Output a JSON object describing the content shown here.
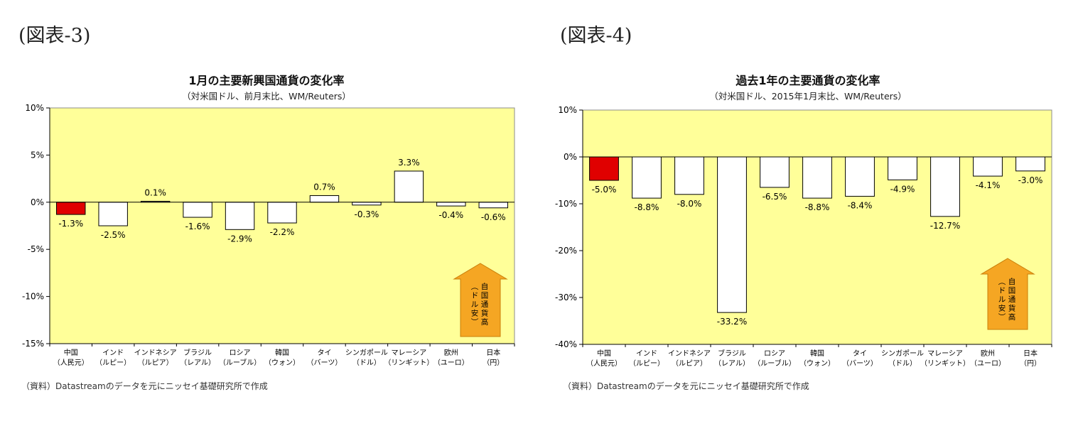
{
  "colors": {
    "plot_background": "#FFFF99",
    "highlight_bar": "#E00000",
    "bar_fill": "#FFFFFF",
    "bar_stroke": "#000000",
    "arrow_fill": "#F5A623",
    "arrow_stroke": "#C97F0A"
  },
  "panels": [
    {
      "figure_label": "(図表-3)",
      "source": "（資料）Datastreamのデータを元にニッセイ基礎研究所で作成",
      "arrow_label": "自国通貨高（ドル安）",
      "chart_data": {
        "type": "bar",
        "title": "1月の主要新興国通貨の変化率",
        "subtitle": "（対米国ドル、前月末比、WM/Reuters）",
        "xlabel": "",
        "ylabel": "",
        "ylim": [
          -15,
          10
        ],
        "yticks": [
          10,
          5,
          0,
          -5,
          -10,
          -15
        ],
        "ytick_labels": [
          "10%",
          "5%",
          "0%",
          "-5%",
          "-10%",
          "-15%"
        ],
        "grid": false,
        "legend": "none",
        "categories": [
          [
            "中国",
            "（人民元）"
          ],
          [
            "インド",
            "（ルピー）"
          ],
          [
            "インドネシア",
            "（ルピア）"
          ],
          [
            "ブラジル",
            "（レアル）"
          ],
          [
            "ロシア",
            "（ルーブル）"
          ],
          [
            "韓国",
            "（ウォン）"
          ],
          [
            "タイ",
            "（バーツ）"
          ],
          [
            "シンガポール",
            "（ドル）"
          ],
          [
            "マレーシア",
            "（リンギット）"
          ],
          [
            "欧州",
            "（ユーロ）"
          ],
          [
            "日本",
            "（円）"
          ]
        ],
        "values": [
          -1.3,
          -2.5,
          0.1,
          -1.6,
          -2.9,
          -2.2,
          0.7,
          -0.3,
          3.3,
          -0.4,
          -0.6
        ],
        "value_labels": [
          "-1.3%",
          "-2.5%",
          "0.1%",
          "-1.6%",
          "-2.9%",
          "-2.2%",
          "0.7%",
          "-0.3%",
          "3.3%",
          "-0.4%",
          "-0.6%"
        ],
        "highlight_index": 0
      }
    },
    {
      "figure_label": "(図表-4)",
      "source": "（資料）Datastreamのデータを元にニッセイ基礎研究所で作成",
      "arrow_label": "自国通貨高（ドル安）",
      "chart_data": {
        "type": "bar",
        "title": "過去1年の主要通貨の変化率",
        "subtitle": "（対米国ドル、2015年1月末比、WM/Reuters）",
        "xlabel": "",
        "ylabel": "",
        "ylim": [
          -40,
          10
        ],
        "yticks": [
          10,
          0,
          -10,
          -20,
          -30,
          -40
        ],
        "ytick_labels": [
          "10%",
          "0%",
          "-10%",
          "-20%",
          "-30%",
          "-40%"
        ],
        "grid": false,
        "legend": "none",
        "categories": [
          [
            "中国",
            "（人民元）"
          ],
          [
            "インド",
            "（ルピー）"
          ],
          [
            "インドネシア",
            "（ルピア）"
          ],
          [
            "ブラジル",
            "（レアル）"
          ],
          [
            "ロシア",
            "（ルーブル）"
          ],
          [
            "韓国",
            "（ウォン）"
          ],
          [
            "タイ",
            "（バーツ）"
          ],
          [
            "シンガポール",
            "（ドル）"
          ],
          [
            "マレーシア",
            "（リンギット）"
          ],
          [
            "欧州",
            "（ユーロ）"
          ],
          [
            "日本",
            "（円）"
          ]
        ],
        "values": [
          -5.0,
          -8.8,
          -8.0,
          -33.2,
          -6.5,
          -8.8,
          -8.4,
          -4.9,
          -12.7,
          -4.1,
          -3.0
        ],
        "value_labels": [
          "-5.0%",
          "-8.8%",
          "-8.0%",
          "-33.2%",
          "-6.5%",
          "-8.8%",
          "-8.4%",
          "-4.9%",
          "-12.7%",
          "-4.1%",
          "-3.0%"
        ],
        "highlight_index": 0
      }
    }
  ]
}
